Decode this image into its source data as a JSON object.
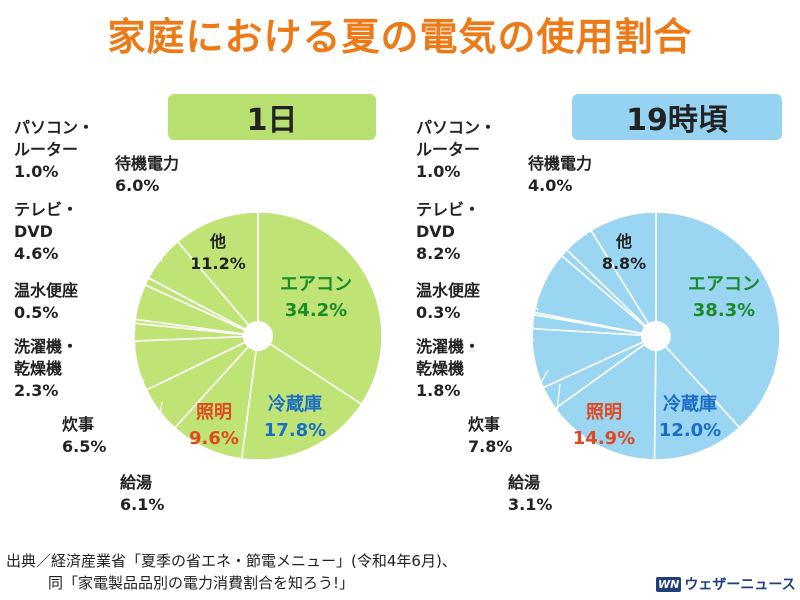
{
  "title": "家庭における夏の電気の使用割合",
  "colors": {
    "title": "#ec7a17",
    "left_fill": "#bfe375",
    "right_fill": "#9ad5f2",
    "left_label_bg": "#b8e070",
    "right_label_bg": "#96d3f2",
    "aircon_text": "#1a8a2a",
    "fridge_text": "#1a6fc4",
    "lighting_text": "#e0491f",
    "default_text": "#222222"
  },
  "footer": {
    "line1": "出典／経済産業省「夏季の省エネ・節電メニュー」(令和4年6月)、",
    "line2": "同「家電製品品別の電力消費割合を知ろう!」"
  },
  "brand": {
    "mark": "WN",
    "name": "ウェザーニュース"
  },
  "chart_data": [
    {
      "type": "pie",
      "title": "1日",
      "slices": [
        {
          "label": "エアコン",
          "value": 34.2,
          "value_text": "34.2%"
        },
        {
          "label": "冷蔵庫",
          "value": 17.8,
          "value_text": "17.8%"
        },
        {
          "label": "照明",
          "value": 9.6,
          "value_text": "9.6%"
        },
        {
          "label": "給湯",
          "value": 6.1,
          "value_text": "6.1%"
        },
        {
          "label": "炊事",
          "value": 6.5,
          "value_text": "6.5%"
        },
        {
          "label": "洗濯機・\n乾燥機",
          "value": 2.3,
          "value_text": "2.3%"
        },
        {
          "label": "温水便座",
          "value": 0.5,
          "value_text": "0.5%"
        },
        {
          "label": "テレビ・\nDVD",
          "value": 4.6,
          "value_text": "4.6%"
        },
        {
          "label": "パソコン・\nルーター",
          "value": 1.0,
          "value_text": "1.0%"
        },
        {
          "label": "待機電力",
          "value": 6.0,
          "value_text": "6.0%"
        },
        {
          "label": "他",
          "value": 11.2,
          "value_text": "11.2%"
        }
      ]
    },
    {
      "type": "pie",
      "title": "19時頃",
      "slices": [
        {
          "label": "エアコン",
          "value": 38.3,
          "value_text": "38.3%"
        },
        {
          "label": "冷蔵庫",
          "value": 12.0,
          "value_text": "12.0%"
        },
        {
          "label": "照明",
          "value": 14.9,
          "value_text": "14.9%"
        },
        {
          "label": "給湯",
          "value": 3.1,
          "value_text": "3.1%"
        },
        {
          "label": "炊事",
          "value": 7.8,
          "value_text": "7.8%"
        },
        {
          "label": "洗濯機・\n乾燥機",
          "value": 1.8,
          "value_text": "1.8%"
        },
        {
          "label": "温水便座",
          "value": 0.3,
          "value_text": "0.3%"
        },
        {
          "label": "テレビ・\nDVD",
          "value": 8.2,
          "value_text": "8.2%"
        },
        {
          "label": "パソコン・\nルーター",
          "value": 1.0,
          "value_text": "1.0%"
        },
        {
          "label": "待機電力",
          "value": 4.0,
          "value_text": "4.0%"
        },
        {
          "label": "他",
          "value": 8.8,
          "value_text": "8.8%"
        }
      ]
    }
  ]
}
